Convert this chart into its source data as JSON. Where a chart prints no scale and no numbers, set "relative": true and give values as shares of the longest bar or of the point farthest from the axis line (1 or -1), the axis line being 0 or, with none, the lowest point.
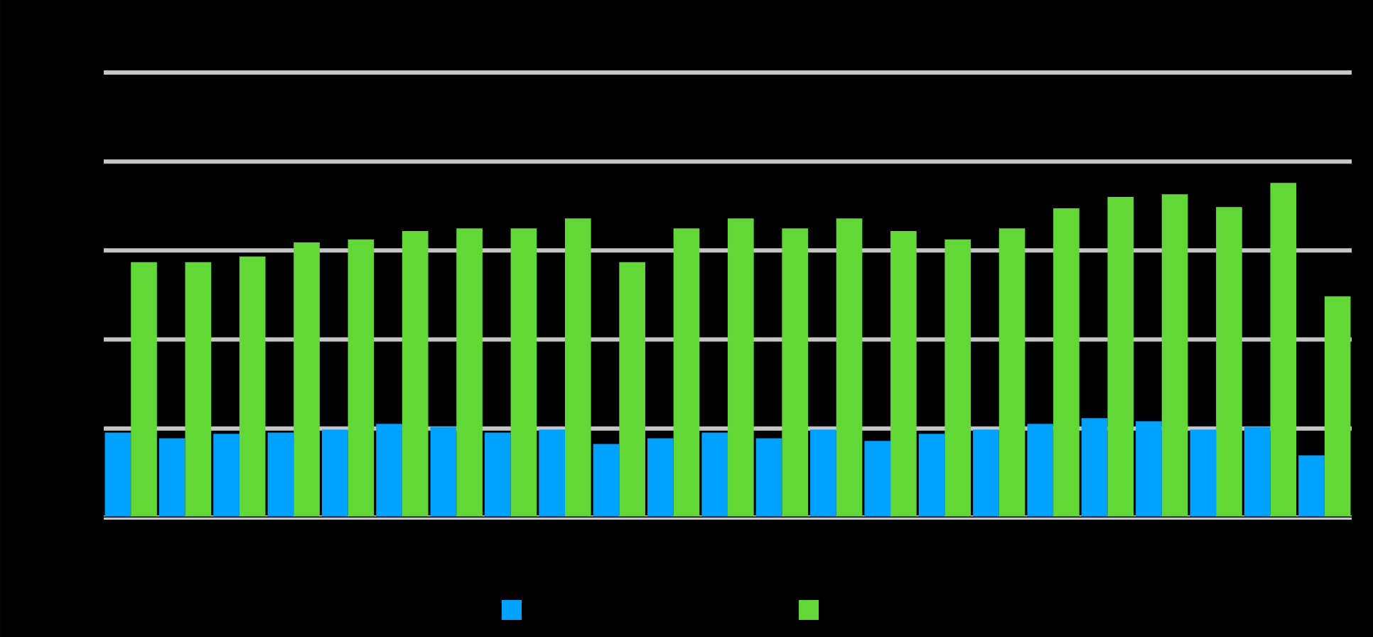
{
  "chart_data": {
    "type": "bar",
    "relative": true,
    "grid": "y",
    "categories": [
      null,
      null,
      null,
      null,
      null,
      null,
      null,
      null,
      null,
      null,
      null,
      null,
      null,
      null,
      null,
      null,
      null,
      null,
      null,
      null,
      null,
      null,
      null
    ],
    "series": [
      {
        "color": "#00a2ff",
        "values": [
          0.254,
          0.237,
          0.25,
          0.254,
          0.263,
          0.28,
          0.271,
          0.254,
          0.263,
          0.22,
          0.237,
          0.254,
          0.237,
          0.263,
          0.229,
          0.25,
          0.263,
          0.28,
          0.297,
          0.288,
          0.263,
          0.271,
          0.186
        ]
      },
      {
        "color": "#61d836",
        "values": [
          0.763,
          0.763,
          0.78,
          0.822,
          0.831,
          0.856,
          0.864,
          0.864,
          0.894,
          0.763,
          0.864,
          0.894,
          0.864,
          0.894,
          0.856,
          0.831,
          0.864,
          0.924,
          0.958,
          0.966,
          0.928,
          1,
          0.661
        ]
      }
    ]
  }
}
